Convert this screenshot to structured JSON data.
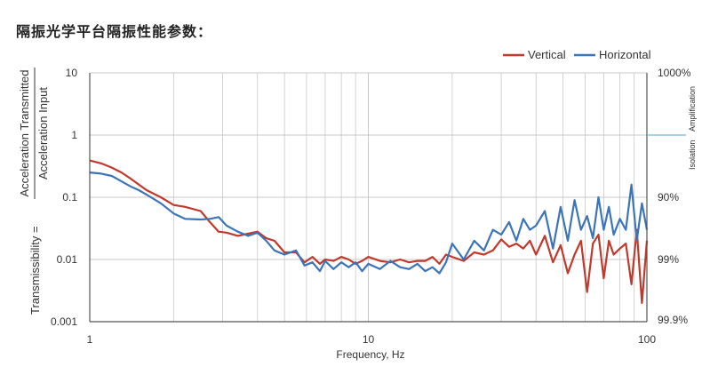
{
  "title": "隔振光学平台隔振性能参数：",
  "chart_data": {
    "type": "line",
    "xlabel": "Frequency, Hz",
    "ylabel_equals": "Transmissibility =",
    "ylabel_numerator": "Acceleration Transmitted",
    "ylabel_denominator": "Acceleration Input",
    "x_scale": "log",
    "y_scale": "log",
    "xlim": [
      1,
      100
    ],
    "ylim": [
      0.001,
      10
    ],
    "x_ticks": [
      {
        "value": 1,
        "label": "1"
      },
      {
        "value": 10,
        "label": "10"
      },
      {
        "value": 100,
        "label": "100"
      }
    ],
    "y_ticks": [
      {
        "value": 10,
        "label": "10"
      },
      {
        "value": 1,
        "label": "1"
      },
      {
        "value": 0.1,
        "label": "0.1"
      },
      {
        "value": 0.01,
        "label": "0.01"
      },
      {
        "value": 0.001,
        "label": "0.001"
      }
    ],
    "right_axis_ticks": [
      {
        "value": 10,
        "label": "1000%"
      },
      {
        "value": 0.1,
        "label": "90%"
      },
      {
        "value": 0.01,
        "label": "99%"
      },
      {
        "value": 0.001,
        "label": "99.9%"
      }
    ],
    "right_axis_region_labels": {
      "above": "Amplification",
      "below": "Isolation",
      "boundary": 1
    },
    "grid": true,
    "legend_position": "top-right",
    "colors": {
      "Vertical": "#c0392b",
      "Horizontal": "#3b74b8",
      "grid": "#c8c8c8",
      "marker": "#6fb6d6"
    },
    "series": [
      {
        "name": "Vertical",
        "color": "#c0392b",
        "x": [
          1,
          1.1,
          1.2,
          1.3,
          1.4,
          1.5,
          1.6,
          1.8,
          2.0,
          2.2,
          2.5,
          2.7,
          2.9,
          3.1,
          3.4,
          3.7,
          4.0,
          4.3,
          4.6,
          5.0,
          5.5,
          5.9,
          6.3,
          6.7,
          7.0,
          7.5,
          8.0,
          8.5,
          9.0,
          9.5,
          10.0,
          11,
          12,
          13,
          14,
          15,
          16,
          17,
          18,
          19,
          20,
          22,
          24,
          26,
          28,
          30,
          32,
          34,
          36,
          38,
          40,
          43,
          46,
          49,
          52,
          55,
          58,
          61,
          64,
          67,
          70,
          73,
          76,
          80,
          84,
          88,
          92,
          96,
          100
        ],
        "y": [
          0.39,
          0.35,
          0.3,
          0.25,
          0.2,
          0.16,
          0.13,
          0.1,
          0.075,
          0.07,
          0.06,
          0.04,
          0.028,
          0.027,
          0.024,
          0.026,
          0.028,
          0.022,
          0.02,
          0.013,
          0.013,
          0.009,
          0.011,
          0.0085,
          0.01,
          0.0095,
          0.011,
          0.01,
          0.0085,
          0.0095,
          0.011,
          0.0095,
          0.009,
          0.01,
          0.009,
          0.0095,
          0.0095,
          0.011,
          0.0085,
          0.012,
          0.011,
          0.0095,
          0.013,
          0.012,
          0.014,
          0.021,
          0.016,
          0.018,
          0.015,
          0.02,
          0.012,
          0.024,
          0.009,
          0.017,
          0.006,
          0.012,
          0.02,
          0.003,
          0.018,
          0.025,
          0.005,
          0.02,
          0.012,
          0.015,
          0.018,
          0.004,
          0.03,
          0.002,
          0.02
        ]
      },
      {
        "name": "Horizontal",
        "color": "#3b74b8",
        "x": [
          1,
          1.1,
          1.2,
          1.3,
          1.4,
          1.5,
          1.6,
          1.8,
          2.0,
          2.2,
          2.5,
          2.7,
          2.9,
          3.1,
          3.4,
          3.7,
          4.0,
          4.3,
          4.6,
          5.0,
          5.5,
          5.9,
          6.3,
          6.7,
          7.0,
          7.5,
          8.0,
          8.5,
          9.0,
          9.5,
          10.0,
          11,
          12,
          13,
          14,
          15,
          16,
          17,
          18,
          19,
          20,
          22,
          24,
          26,
          28,
          30,
          32,
          34,
          36,
          38,
          40,
          43,
          46,
          49,
          52,
          55,
          58,
          61,
          64,
          67,
          70,
          73,
          76,
          80,
          84,
          88,
          92,
          96,
          100
        ],
        "y": [
          0.25,
          0.24,
          0.22,
          0.18,
          0.15,
          0.13,
          0.11,
          0.08,
          0.055,
          0.045,
          0.044,
          0.045,
          0.048,
          0.035,
          0.028,
          0.024,
          0.027,
          0.02,
          0.014,
          0.012,
          0.014,
          0.008,
          0.009,
          0.0065,
          0.0095,
          0.007,
          0.009,
          0.0075,
          0.009,
          0.0065,
          0.0085,
          0.007,
          0.0095,
          0.0075,
          0.007,
          0.0085,
          0.0065,
          0.0075,
          0.006,
          0.009,
          0.018,
          0.01,
          0.02,
          0.014,
          0.03,
          0.025,
          0.04,
          0.02,
          0.045,
          0.03,
          0.035,
          0.06,
          0.015,
          0.07,
          0.02,
          0.09,
          0.03,
          0.05,
          0.022,
          0.1,
          0.03,
          0.07,
          0.025,
          0.045,
          0.03,
          0.16,
          0.02,
          0.08,
          0.03
        ]
      }
    ]
  }
}
